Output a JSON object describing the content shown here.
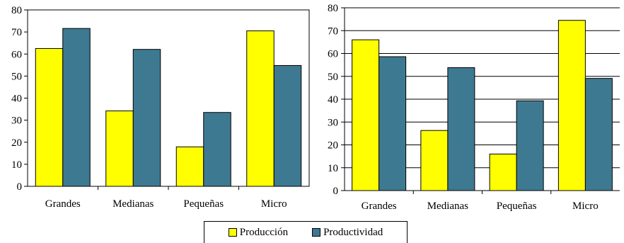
{
  "chart_data": [
    {
      "type": "bar",
      "categories": [
        "Grandes",
        "Medianas",
        "Pequeñas",
        "Micro"
      ],
      "series": [
        {
          "name": "Producción",
          "values": [
            62.5,
            34.2,
            17.9,
            70.5
          ],
          "color": "#ffff00"
        },
        {
          "name": "Productividad",
          "values": [
            71.6,
            62.1,
            33.5,
            54.8
          ],
          "color": "#3e7992"
        }
      ],
      "ylim": [
        0,
        80
      ],
      "yticks": [
        0,
        10,
        20,
        30,
        40,
        50,
        60,
        70,
        80
      ],
      "grid": false
    },
    {
      "type": "bar",
      "categories": [
        "Grandes",
        "Medianas",
        "Pequeñas",
        "Micro"
      ],
      "series": [
        {
          "name": "Producción",
          "values": [
            66.0,
            26.3,
            16.0,
            74.5
          ],
          "color": "#ffff00"
        },
        {
          "name": "Productividad",
          "values": [
            58.6,
            53.8,
            39.3,
            49.1
          ],
          "color": "#3e7992"
        }
      ],
      "ylim": [
        0,
        80
      ],
      "yticks": [
        0,
        10,
        20,
        30,
        40,
        50,
        60,
        70,
        80
      ],
      "grid": true
    }
  ],
  "legend": {
    "items": [
      {
        "label": "Producción",
        "color": "#ffff00"
      },
      {
        "label": "Productividad",
        "color": "#3e7992"
      }
    ]
  }
}
